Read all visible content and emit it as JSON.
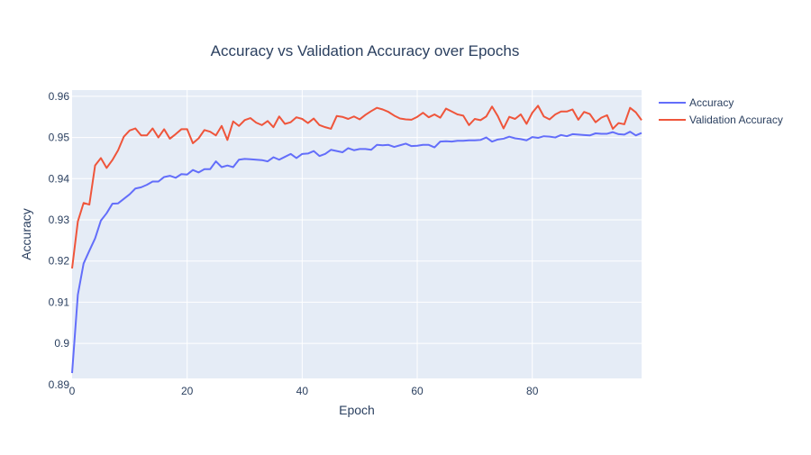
{
  "chart_data": {
    "type": "line",
    "title": "Accuracy vs Validation Accuracy over Epochs",
    "xlabel": "Epoch",
    "ylabel": "Accuracy",
    "xlim": [
      0,
      99
    ],
    "ylim": [
      0.8915,
      0.9615
    ],
    "x_ticks": [
      0,
      20,
      40,
      60,
      80
    ],
    "y_ticks": [
      0.89,
      0.9,
      0.91,
      0.92,
      0.93,
      0.94,
      0.95,
      0.96
    ],
    "x_tick_labels": [
      "0",
      "20",
      "40",
      "60",
      "80"
    ],
    "y_tick_labels": [
      "0.89",
      "0.9",
      "0.91",
      "0.92",
      "0.93",
      "0.94",
      "0.95",
      "0.96"
    ],
    "grid": true,
    "legend_position": "top-right",
    "colors": {
      "plot_bg": "#e5ecf6",
      "grid": "#ffffff",
      "text": "#2a3f5f"
    },
    "series": [
      {
        "name": "Accuracy",
        "color": "#636efa",
        "values": [
          0.8928,
          0.9118,
          0.9194,
          0.9225,
          0.9255,
          0.9298,
          0.9316,
          0.9339,
          0.934,
          0.9351,
          0.9362,
          0.9376,
          0.9379,
          0.9385,
          0.9393,
          0.9393,
          0.9404,
          0.9407,
          0.9402,
          0.9411,
          0.941,
          0.9421,
          0.9415,
          0.9423,
          0.9423,
          0.9442,
          0.9428,
          0.9432,
          0.9428,
          0.9446,
          0.9448,
          0.9447,
          0.9446,
          0.9445,
          0.9442,
          0.9452,
          0.9446,
          0.9453,
          0.946,
          0.945,
          0.946,
          0.9461,
          0.9467,
          0.9455,
          0.946,
          0.947,
          0.9467,
          0.9464,
          0.9474,
          0.9469,
          0.9472,
          0.9472,
          0.947,
          0.9482,
          0.9481,
          0.9482,
          0.9477,
          0.9481,
          0.9485,
          0.9479,
          0.948,
          0.9482,
          0.9482,
          0.9476,
          0.949,
          0.9491,
          0.949,
          0.9492,
          0.9492,
          0.9493,
          0.9493,
          0.9494,
          0.95,
          0.949,
          0.9495,
          0.9497,
          0.9502,
          0.9498,
          0.9496,
          0.9493,
          0.9501,
          0.9499,
          0.9503,
          0.9502,
          0.95,
          0.9506,
          0.9503,
          0.9508,
          0.9507,
          0.9506,
          0.9505,
          0.951,
          0.9509,
          0.9509,
          0.9513,
          0.9508,
          0.9507,
          0.9514,
          0.9505,
          0.9511
        ]
      },
      {
        "name": "Validation Accuracy",
        "color": "#ef553b",
        "values": [
          0.9182,
          0.9296,
          0.9341,
          0.9337,
          0.9432,
          0.945,
          0.9426,
          0.9445,
          0.9469,
          0.9502,
          0.9517,
          0.9522,
          0.9505,
          0.9505,
          0.9522,
          0.95,
          0.952,
          0.9497,
          0.9508,
          0.952,
          0.952,
          0.9486,
          0.9498,
          0.9518,
          0.9514,
          0.9505,
          0.9528,
          0.9494,
          0.9539,
          0.9528,
          0.9542,
          0.9547,
          0.9536,
          0.953,
          0.954,
          0.9525,
          0.9551,
          0.9533,
          0.9537,
          0.9549,
          0.9545,
          0.9535,
          0.9546,
          0.953,
          0.9525,
          0.9521,
          0.9552,
          0.955,
          0.9545,
          0.9551,
          0.9544,
          0.9555,
          0.9564,
          0.9572,
          0.9568,
          0.9562,
          0.9553,
          0.9546,
          0.9544,
          0.9543,
          0.955,
          0.956,
          0.9549,
          0.9556,
          0.9548,
          0.957,
          0.9563,
          0.9556,
          0.9553,
          0.953,
          0.9545,
          0.9542,
          0.9551,
          0.9575,
          0.9552,
          0.9522,
          0.955,
          0.9545,
          0.9556,
          0.9533,
          0.956,
          0.9577,
          0.9551,
          0.9544,
          0.9556,
          0.9563,
          0.9563,
          0.9568,
          0.9543,
          0.9562,
          0.9557,
          0.9537,
          0.9548,
          0.9554,
          0.9521,
          0.9535,
          0.9532,
          0.9572,
          0.9561,
          0.9542
        ]
      }
    ]
  }
}
